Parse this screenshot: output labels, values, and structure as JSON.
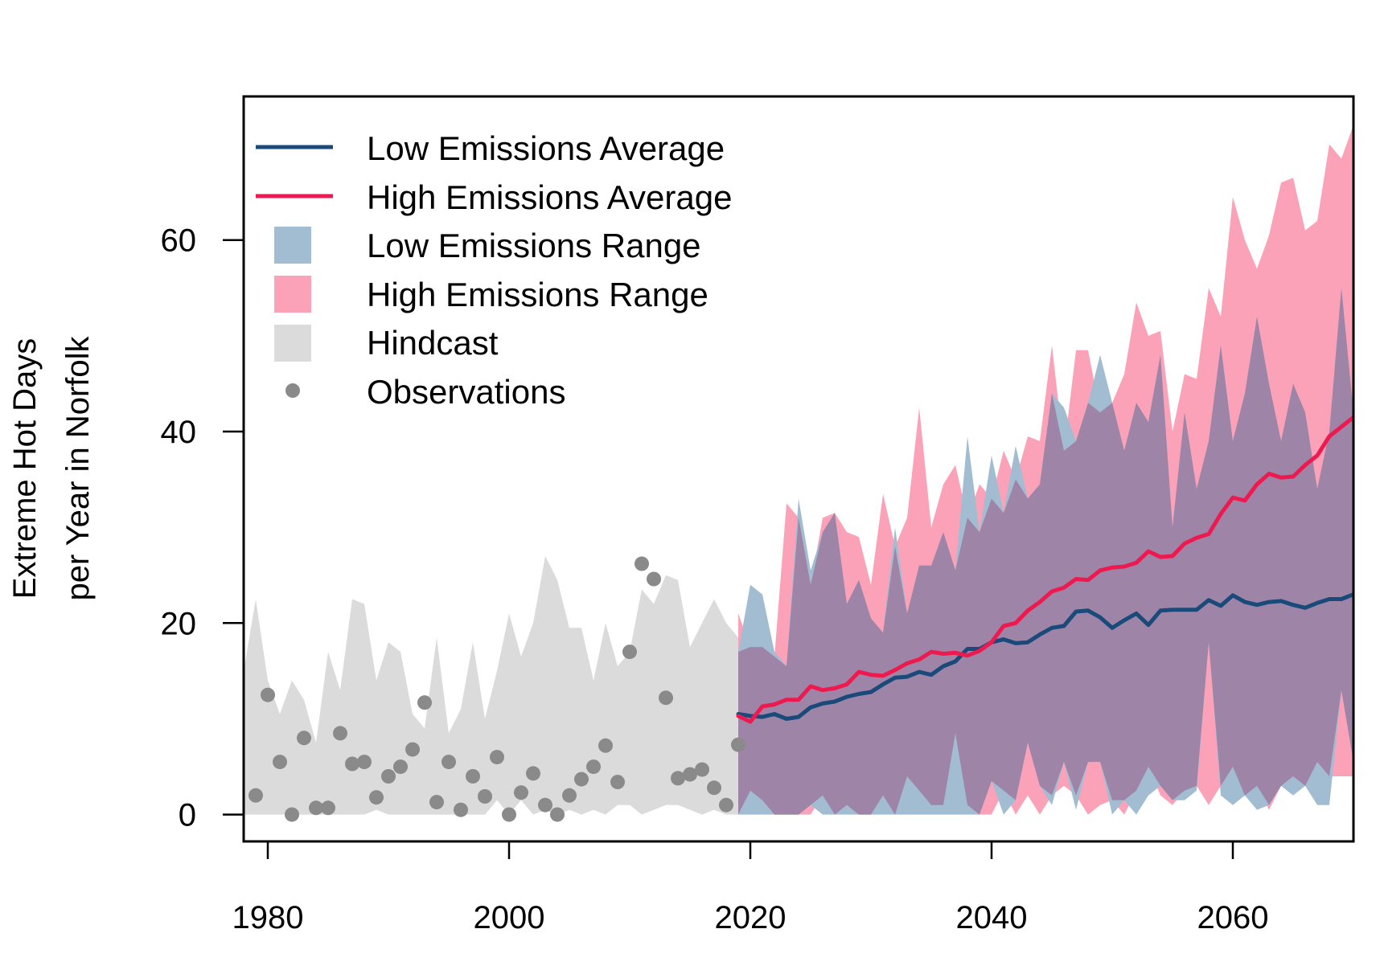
{
  "chart_data": {
    "type": "line",
    "title": "",
    "xlabel": "",
    "ylabel_lines": [
      "Extreme Hot Days",
      "per Year in Norfolk"
    ],
    "xlim": [
      1978,
      2070
    ],
    "ylim": [
      -2.8,
      75
    ],
    "x_ticks": [
      1980,
      2000,
      2020,
      2040,
      2060
    ],
    "y_ticks": [
      0,
      20,
      40,
      60
    ],
    "grid": false,
    "legend_position": "top-left",
    "colors": {
      "low_line": "#1a4a7a",
      "high_line": "#ee1a4f",
      "low_range": "#a2bcd2",
      "high_range": "#fca2b8",
      "overlap": "#9e85a8",
      "hindcast": "#dbdbdb",
      "observations": "#8a8a8a"
    },
    "legend": [
      {
        "label": "Low Emissions Average",
        "kind": "line",
        "color": "#1a4a7a"
      },
      {
        "label": "High Emissions Average",
        "kind": "line",
        "color": "#ee1a4f"
      },
      {
        "label": "Low Emissions Range",
        "kind": "box",
        "color": "#a2bcd2"
      },
      {
        "label": "High Emissions Range",
        "kind": "box",
        "color": "#fca2b8"
      },
      {
        "label": "Hindcast",
        "kind": "box",
        "color": "#dbdbdb"
      },
      {
        "label": "Observations",
        "kind": "dot",
        "color": "#8a8a8a"
      }
    ],
    "hindcast": {
      "x": [
        1978,
        1979,
        1980,
        1981,
        1982,
        1983,
        1984,
        1985,
        1986,
        1987,
        1988,
        1989,
        1990,
        1991,
        1992,
        1993,
        1994,
        1995,
        1996,
        1997,
        1998,
        1999,
        2000,
        2001,
        2002,
        2003,
        2004,
        2005,
        2006,
        2007,
        2008,
        2009,
        2010,
        2011,
        2012,
        2013,
        2014,
        2015,
        2016,
        2017,
        2018,
        2019
      ],
      "upper": [
        15,
        22.5,
        14,
        10.5,
        14,
        12,
        7.5,
        17,
        13,
        22.5,
        22,
        14,
        18,
        17,
        10.5,
        9,
        18.5,
        8.5,
        11,
        18,
        10,
        15,
        21,
        16.5,
        20,
        27,
        24.5,
        19.5,
        19.5,
        14,
        20,
        15.5,
        17,
        23.5,
        22,
        25,
        24.5,
        17.5,
        20,
        22.5,
        20,
        18.5
      ],
      "lower": [
        0,
        0,
        0,
        0,
        0,
        0,
        0,
        0,
        0,
        0,
        0,
        0.5,
        0,
        0,
        0,
        0,
        0,
        0,
        0,
        0,
        0,
        1.5,
        0,
        1.5,
        0,
        0.5,
        0,
        0.5,
        0,
        0.5,
        0,
        1,
        1,
        0,
        0.5,
        1,
        1,
        0.5,
        0,
        0.5,
        0,
        0
      ]
    },
    "observations": {
      "x": [
        1979,
        1980,
        1981,
        1982,
        1983,
        1984,
        1985,
        1986,
        1987,
        1988,
        1989,
        1990,
        1991,
        1992,
        1993,
        1994,
        1995,
        1996,
        1997,
        1998,
        1999,
        2000,
        2001,
        2002,
        2003,
        2004,
        2005,
        2006,
        2007,
        2008,
        2009,
        2010,
        2011,
        2012,
        2013,
        2014,
        2015,
        2016,
        2017,
        2018,
        2019
      ],
      "y": [
        2,
        12.5,
        5.5,
        0,
        8,
        0.7,
        0.7,
        8.5,
        5.3,
        5.5,
        1.8,
        4,
        5,
        6.8,
        11.7,
        1.3,
        5.5,
        0.5,
        4,
        1.9,
        6,
        0,
        2.3,
        4.3,
        1,
        0,
        2,
        3.7,
        5,
        7.2,
        3.4,
        17,
        26.2,
        24.6,
        12.2,
        3.8,
        4.2,
        4.7,
        2.8,
        1,
        7.3
      ]
    },
    "years": [
      2019,
      2020,
      2021,
      2022,
      2023,
      2024,
      2025,
      2026,
      2027,
      2028,
      2029,
      2030,
      2031,
      2032,
      2033,
      2034,
      2035,
      2036,
      2037,
      2038,
      2039,
      2040,
      2041,
      2042,
      2043,
      2044,
      2045,
      2046,
      2047,
      2048,
      2049,
      2050,
      2051,
      2052,
      2053,
      2054,
      2055,
      2056,
      2057,
      2058,
      2059,
      2060,
      2061,
      2062,
      2063,
      2064,
      2065,
      2066,
      2067,
      2068,
      2069,
      2070
    ],
    "series": [
      {
        "name": "Low Emissions Average",
        "values": [
          10.5,
          10.3,
          10.2,
          10.5,
          10,
          10.2,
          11.2,
          11.6,
          11.8,
          12.3,
          12.6,
          12.8,
          13.6,
          14.3,
          14.4,
          14.9,
          14.6,
          15.5,
          16,
          17.3,
          17.3,
          18,
          18.3,
          17.9,
          18,
          18.8,
          19.5,
          19.7,
          21.2,
          21.3,
          20.6,
          19.5,
          20.3,
          21,
          19.8,
          21.3,
          21.4,
          21.4,
          21.4,
          22.4,
          21.8,
          22.9,
          22.2,
          21.9,
          22.2,
          22.3,
          21.9,
          21.6,
          22.1,
          22.5,
          22.5,
          23
        ]
      },
      {
        "name": "High Emissions Average",
        "values": [
          10.3,
          9.7,
          11.3,
          11.5,
          12,
          12,
          13.4,
          13,
          13.2,
          13.6,
          14.9,
          14.6,
          14.5,
          15.1,
          15.8,
          16.2,
          17,
          16.8,
          16.9,
          16.6,
          17.1,
          18,
          19.7,
          20,
          21.3,
          22.2,
          23.3,
          23.7,
          24.6,
          24.5,
          25.5,
          25.8,
          25.9,
          26.3,
          27.5,
          26.9,
          27,
          28.3,
          28.9,
          29.3,
          31.4,
          33.1,
          32.8,
          34.5,
          35.6,
          35.2,
          35.3,
          36.5,
          37.5,
          39.5,
          40.5,
          41.5
        ]
      }
    ],
    "low_range": {
      "upper": [
        17,
        24,
        23,
        17,
        15.5,
        33,
        25.5,
        29.5,
        31.5,
        22,
        24.5,
        20.5,
        19,
        30,
        21,
        26,
        26,
        29.5,
        25.5,
        39.5,
        29.5,
        37.5,
        31.5,
        38.5,
        33,
        34.5,
        44,
        42.5,
        39,
        43,
        48,
        43,
        38,
        43,
        41,
        48,
        30,
        42,
        34,
        39,
        49,
        39,
        44,
        52,
        45,
        39,
        45,
        42,
        34,
        40,
        55,
        42
      ],
      "lower": [
        0,
        0,
        0,
        0,
        0,
        0,
        1,
        0,
        0,
        0,
        0,
        0,
        0,
        0,
        0,
        0,
        0,
        0,
        0,
        0,
        0,
        3.5,
        0,
        1.5,
        7.5,
        3,
        1,
        5.5,
        0.5,
        5.5,
        5.5,
        0,
        1.5,
        0,
        2,
        3,
        1.5,
        1.5,
        2.5,
        18,
        2,
        1,
        2,
        0.5,
        1,
        3,
        2,
        3,
        1,
        1,
        13,
        5.5
      ]
    },
    "high_range": {
      "upper": [
        21,
        17.5,
        17.5,
        16.5,
        32.5,
        31,
        24,
        31,
        31.5,
        29.5,
        29,
        24,
        33.5,
        28,
        31,
        42.5,
        30,
        34.5,
        36.5,
        31,
        34.5,
        33,
        38,
        35,
        39.5,
        39,
        49,
        38,
        48.5,
        48.5,
        42,
        43,
        46,
        53.5,
        50,
        50.5,
        40,
        46,
        45.5,
        55,
        52,
        64.5,
        60,
        57,
        60.5,
        66,
        66.5,
        61,
        62,
        70,
        68.5,
        72
      ],
      "lower": [
        0,
        2.5,
        1.5,
        0,
        0,
        0,
        0,
        2,
        0,
        1,
        0,
        0,
        2,
        0,
        4,
        2.5,
        1,
        1,
        8.5,
        1,
        0,
        0,
        2.5,
        0,
        2,
        0,
        2,
        3,
        2,
        0,
        1,
        1.5,
        0,
        2.5,
        5,
        2,
        1,
        2.5,
        3,
        1,
        3,
        5,
        2,
        3,
        0.5,
        3,
        4,
        3,
        5.5,
        4,
        4,
        4
      ]
    }
  }
}
